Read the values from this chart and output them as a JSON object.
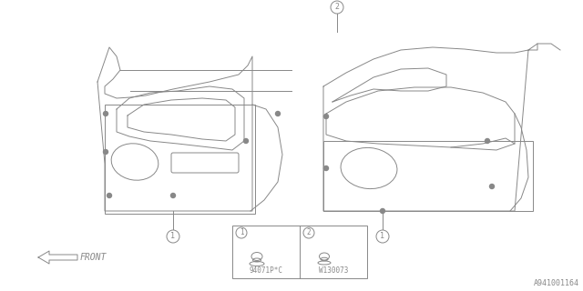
{
  "bg_color": "#ffffff",
  "line_color": "#888888",
  "title_text": "A941001164",
  "front_label": "FRONT",
  "part1_label": "94071P*C",
  "part2_label": "W130073",
  "font_color": "#888888"
}
